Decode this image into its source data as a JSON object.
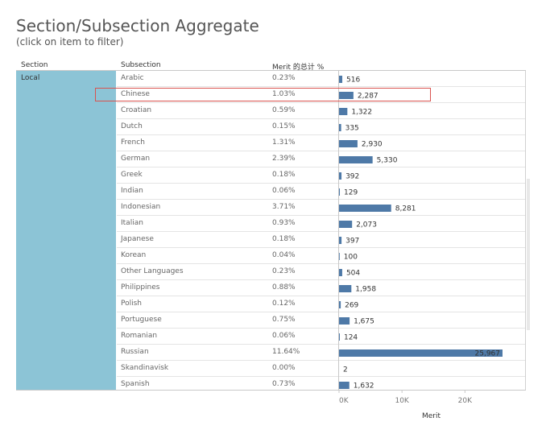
{
  "page": {
    "title": "Section/Subsection Aggregate",
    "subtitle": "(click on item to filter)"
  },
  "table": {
    "headers": {
      "section": "Section",
      "subsection": "Subsection",
      "pct": "Merit 的总计 %"
    },
    "section_value": "Local",
    "selected_row": "Chinese",
    "rows": [
      {
        "subsection": "Arabic",
        "pct": "0.23%",
        "label": "516"
      },
      {
        "subsection": "Chinese",
        "pct": "1.03%",
        "label": "2,287"
      },
      {
        "subsection": "Croatian",
        "pct": "0.59%",
        "label": "1,322"
      },
      {
        "subsection": "Dutch",
        "pct": "0.15%",
        "label": "335"
      },
      {
        "subsection": "French",
        "pct": "1.31%",
        "label": "2,930"
      },
      {
        "subsection": "German",
        "pct": "2.39%",
        "label": "5,330"
      },
      {
        "subsection": "Greek",
        "pct": "0.18%",
        "label": "392"
      },
      {
        "subsection": "Indian",
        "pct": "0.06%",
        "label": "129"
      },
      {
        "subsection": "Indonesian",
        "pct": "3.71%",
        "label": "8,281"
      },
      {
        "subsection": "Italian",
        "pct": "0.93%",
        "label": "2,073"
      },
      {
        "subsection": "Japanese",
        "pct": "0.18%",
        "label": "397"
      },
      {
        "subsection": "Korean",
        "pct": "0.04%",
        "label": "100"
      },
      {
        "subsection": "Other Languages",
        "pct": "0.23%",
        "label": "504"
      },
      {
        "subsection": "Philippines",
        "pct": "0.88%",
        "label": "1,958"
      },
      {
        "subsection": "Polish",
        "pct": "0.12%",
        "label": "269"
      },
      {
        "subsection": "Portuguese",
        "pct": "0.75%",
        "label": "1,675"
      },
      {
        "subsection": "Romanian",
        "pct": "0.06%",
        "label": "124"
      },
      {
        "subsection": "Russian",
        "pct": "11.64%",
        "label": "25,967"
      },
      {
        "subsection": "Skandinavisk",
        "pct": "0.00%",
        "label": "2"
      },
      {
        "subsection": "Spanish",
        "pct": "0.73%",
        "label": "1,632"
      }
    ]
  },
  "chart_data": {
    "type": "bar",
    "orientation": "horizontal",
    "xlabel": "Merit",
    "xlim": [
      0,
      29000
    ],
    "x_ticks": [
      0,
      10000,
      20000
    ],
    "x_tick_labels": [
      "0K",
      "10K",
      "20K"
    ],
    "categories": [
      "Arabic",
      "Chinese",
      "Croatian",
      "Dutch",
      "French",
      "German",
      "Greek",
      "Indian",
      "Indonesian",
      "Italian",
      "Japanese",
      "Korean",
      "Other Languages",
      "Philippines",
      "Polish",
      "Portuguese",
      "Romanian",
      "Russian",
      "Skandinavisk",
      "Spanish"
    ],
    "values": [
      516,
      2287,
      1322,
      335,
      2930,
      5330,
      392,
      129,
      8281,
      2073,
      397,
      100,
      504,
      1958,
      269,
      1675,
      124,
      25967,
      2,
      1632
    ],
    "bar_color": "#4e79a7",
    "section_color": "#8cc4d6",
    "highlight_color": "#d9534f"
  }
}
